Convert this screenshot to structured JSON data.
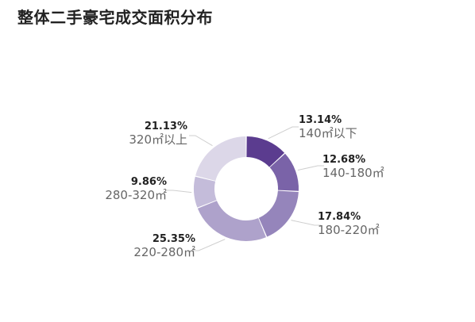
{
  "page": {
    "title": "整体二手豪宅成交面积分布"
  },
  "chart_data": {
    "type": "pie",
    "title": "整体二手豪宅成交面积分布",
    "donut": true,
    "legend": "none",
    "slices": [
      {
        "label": "140㎡以下",
        "value": 13.14,
        "display": "13.14%",
        "color": "#5b3c8f"
      },
      {
        "label": "140-180㎡",
        "value": 12.68,
        "display": "12.68%",
        "color": "#7a63a8"
      },
      {
        "label": "180-220㎡",
        "value": 17.84,
        "display": "17.84%",
        "color": "#9585bb"
      },
      {
        "label": "220-280㎡",
        "value": 25.35,
        "display": "25.35%",
        "color": "#aea2cb"
      },
      {
        "label": "280-320㎡",
        "value": 9.86,
        "display": "9.86%",
        "color": "#c4bcda"
      },
      {
        "label": "320㎡以上",
        "value": 21.13,
        "display": "21.13%",
        "color": "#dcd7e8"
      }
    ]
  }
}
